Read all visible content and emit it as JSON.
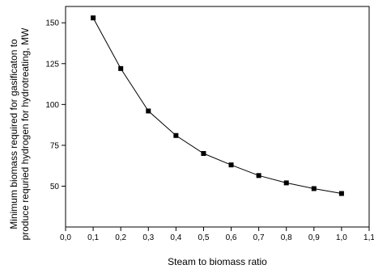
{
  "chart_data": {
    "type": "line",
    "title": "",
    "xlabel": "Steam to biomass ratio",
    "ylabel": [
      "Minimum biomass required for gasificaton to",
      "produce requried hydrogen for hydrotreating, MW"
    ],
    "xlim": [
      0.0,
      1.1
    ],
    "ylim": [
      25,
      160
    ],
    "x_ticks": [
      0.0,
      0.1,
      0.2,
      0.3,
      0.4,
      0.5,
      0.6,
      0.7,
      0.8,
      0.9,
      1.0,
      1.1
    ],
    "x_tick_labels": [
      "0,0",
      "0,1",
      "0,2",
      "0,3",
      "0,4",
      "0,5",
      "0,6",
      "0,7",
      "0,8",
      "0,9",
      "1,0",
      "1,1"
    ],
    "y_ticks": [
      50,
      75,
      100,
      125,
      150
    ],
    "y_tick_labels": [
      "50",
      "75",
      "100",
      "125",
      "150"
    ],
    "grid": false,
    "legend": "none",
    "marker": "square",
    "series": [
      {
        "x": [
          0.1,
          0.2,
          0.3,
          0.4,
          0.5,
          0.6,
          0.7,
          0.8,
          0.9,
          1.0
        ],
        "values": [
          153,
          122,
          96,
          81,
          70,
          63,
          56.5,
          52,
          48.5,
          45.5
        ]
      }
    ]
  }
}
